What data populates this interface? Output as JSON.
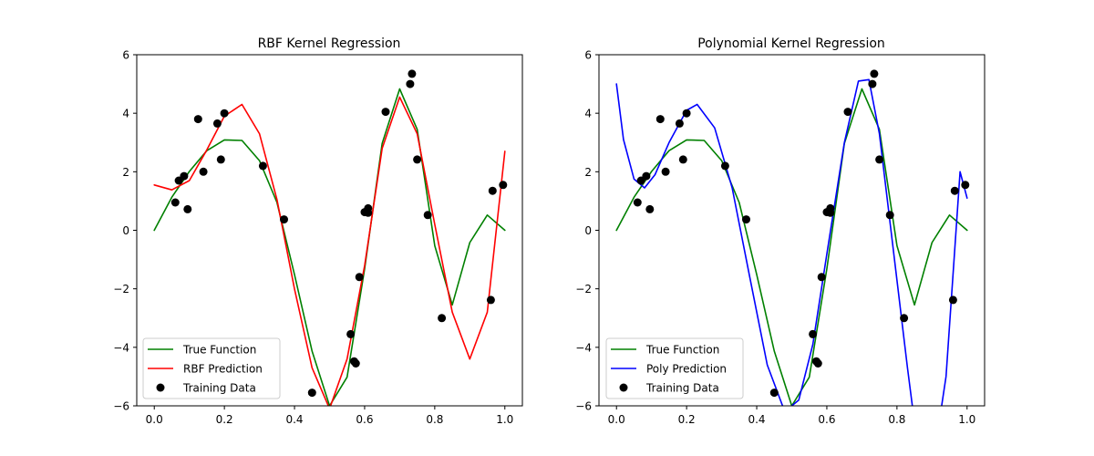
{
  "chart_data": [
    {
      "type": "line",
      "title": "RBF Kernel Regression",
      "xlabel": "",
      "ylabel": "",
      "xlim": [
        -0.05,
        1.05
      ],
      "ylim": [
        -6,
        6
      ],
      "xticks": [
        0.0,
        0.2,
        0.4,
        0.6,
        0.8,
        1.0
      ],
      "xtick_labels": [
        "0.0",
        "0.2",
        "0.4",
        "0.6",
        "0.8",
        "1.0"
      ],
      "yticks": [
        -6,
        -4,
        -2,
        0,
        2,
        4,
        6
      ],
      "ytick_labels": [
        "−6",
        "−4",
        "−2",
        "0",
        "2",
        "4",
        "6"
      ],
      "grid": false,
      "legend_position": "lower-left",
      "series": [
        {
          "name": "True Function",
          "kind": "line",
          "color": "#008000",
          "x": [
            0.0,
            0.05,
            0.1,
            0.15,
            0.2,
            0.25,
            0.3,
            0.35,
            0.4,
            0.45,
            0.5,
            0.55,
            0.6,
            0.65,
            0.7,
            0.75,
            0.8,
            0.85,
            0.9,
            0.95,
            1.0
          ],
          "y": [
            0.0,
            1.13,
            2.01,
            2.72,
            3.09,
            3.07,
            2.38,
            0.95,
            -1.51,
            -4.13,
            -6.0,
            -5.02,
            -1.31,
            2.97,
            4.83,
            3.45,
            -0.53,
            -2.55,
            -0.42,
            0.52,
            0.0
          ]
        },
        {
          "name": "RBF Prediction",
          "kind": "line",
          "color": "#ff0000",
          "x": [
            0.0,
            0.05,
            0.1,
            0.15,
            0.2,
            0.25,
            0.3,
            0.35,
            0.4,
            0.45,
            0.5,
            0.55,
            0.6,
            0.65,
            0.7,
            0.75,
            0.8,
            0.85,
            0.9,
            0.95,
            1.0
          ],
          "y": [
            1.55,
            1.38,
            1.7,
            2.75,
            3.9,
            4.3,
            3.3,
            1.05,
            -2.0,
            -4.7,
            -6.1,
            -4.4,
            -1.2,
            2.8,
            4.55,
            3.3,
            0.2,
            -2.8,
            -4.4,
            -2.8,
            2.7
          ]
        },
        {
          "name": "Training Data",
          "kind": "scatter",
          "color": "#000000",
          "x": [
            0.06,
            0.07,
            0.085,
            0.095,
            0.125,
            0.14,
            0.18,
            0.19,
            0.2,
            0.31,
            0.37,
            0.45,
            0.56,
            0.57,
            0.575,
            0.585,
            0.6,
            0.61,
            0.61,
            0.66,
            0.73,
            0.735,
            0.75,
            0.78,
            0.82,
            0.96,
            0.965,
            0.995
          ],
          "y": [
            0.95,
            1.7,
            1.85,
            0.72,
            3.8,
            2.0,
            3.65,
            2.42,
            4.0,
            2.2,
            0.37,
            -5.55,
            -3.55,
            -4.48,
            -4.55,
            -1.6,
            0.62,
            0.75,
            0.6,
            4.05,
            5.0,
            5.35,
            2.42,
            0.52,
            -3.0,
            -2.38,
            1.35,
            1.55
          ]
        }
      ]
    },
    {
      "type": "line",
      "title": "Polynomial Kernel Regression",
      "xlabel": "",
      "ylabel": "",
      "xlim": [
        -0.05,
        1.05
      ],
      "ylim": [
        -6,
        6
      ],
      "xticks": [
        0.0,
        0.2,
        0.4,
        0.6,
        0.8,
        1.0
      ],
      "xtick_labels": [
        "0.0",
        "0.2",
        "0.4",
        "0.6",
        "0.8",
        "1.0"
      ],
      "yticks": [
        -6,
        -4,
        -2,
        0,
        2,
        4,
        6
      ],
      "ytick_labels": [
        "−6",
        "−4",
        "−2",
        "0",
        "2",
        "4",
        "6"
      ],
      "grid": false,
      "legend_position": "lower-left",
      "series": [
        {
          "name": "True Function",
          "kind": "line",
          "color": "#008000",
          "x": [
            0.0,
            0.05,
            0.1,
            0.15,
            0.2,
            0.25,
            0.3,
            0.35,
            0.4,
            0.45,
            0.5,
            0.55,
            0.6,
            0.65,
            0.7,
            0.75,
            0.8,
            0.85,
            0.9,
            0.95,
            1.0
          ],
          "y": [
            0.0,
            1.13,
            2.01,
            2.72,
            3.09,
            3.07,
            2.38,
            0.95,
            -1.51,
            -4.13,
            -6.0,
            -5.02,
            -1.31,
            2.97,
            4.83,
            3.45,
            -0.53,
            -2.55,
            -0.42,
            0.52,
            0.0
          ]
        },
        {
          "name": "Poly Prediction",
          "kind": "line",
          "color": "#0000ff",
          "x": [
            0.0,
            0.02,
            0.05,
            0.08,
            0.11,
            0.15,
            0.2,
            0.23,
            0.28,
            0.33,
            0.38,
            0.43,
            0.48,
            0.52,
            0.56,
            0.6,
            0.65,
            0.69,
            0.72,
            0.75,
            0.79,
            0.83,
            0.86,
            0.9,
            0.94,
            0.98,
            1.0
          ],
          "y": [
            5.0,
            3.1,
            1.75,
            1.45,
            1.9,
            3.0,
            4.1,
            4.3,
            3.5,
            1.45,
            -1.6,
            -4.6,
            -6.2,
            -5.8,
            -3.9,
            -0.8,
            3.0,
            5.1,
            5.15,
            3.3,
            -0.7,
            -4.7,
            -7.5,
            -8.2,
            -5.0,
            2.0,
            1.1
          ]
        },
        {
          "name": "Training Data",
          "kind": "scatter",
          "color": "#000000",
          "x": [
            0.06,
            0.07,
            0.085,
            0.095,
            0.125,
            0.14,
            0.18,
            0.19,
            0.2,
            0.31,
            0.37,
            0.45,
            0.56,
            0.57,
            0.575,
            0.585,
            0.6,
            0.61,
            0.61,
            0.66,
            0.73,
            0.735,
            0.75,
            0.78,
            0.82,
            0.96,
            0.965,
            0.995
          ],
          "y": [
            0.95,
            1.7,
            1.85,
            0.72,
            3.8,
            2.0,
            3.65,
            2.42,
            4.0,
            2.2,
            0.37,
            -5.55,
            -3.55,
            -4.48,
            -4.55,
            -1.6,
            0.62,
            0.75,
            0.6,
            4.05,
            5.0,
            5.35,
            2.42,
            0.52,
            -3.0,
            -2.38,
            1.35,
            1.55
          ]
        }
      ]
    }
  ]
}
